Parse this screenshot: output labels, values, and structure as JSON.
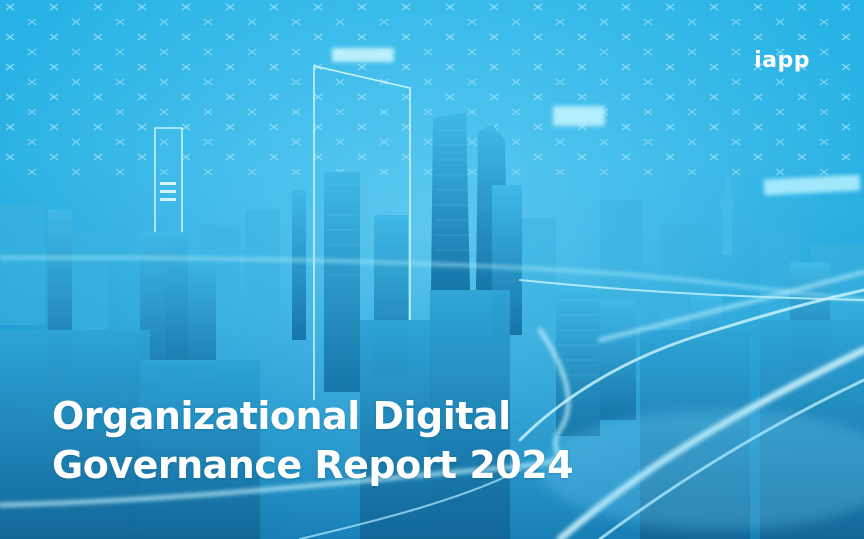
{
  "cover": {
    "logo_text": "iapp",
    "title_line_1": "Organizational Digital",
    "title_line_2": "Governance Report 2024"
  },
  "colors": {
    "background": "#23aee2",
    "text": "#ffffff",
    "glow": "#bff2ff"
  },
  "icons": {
    "logo": "iapp-logo",
    "background_image": "futuristic-city-skyline-photo"
  }
}
